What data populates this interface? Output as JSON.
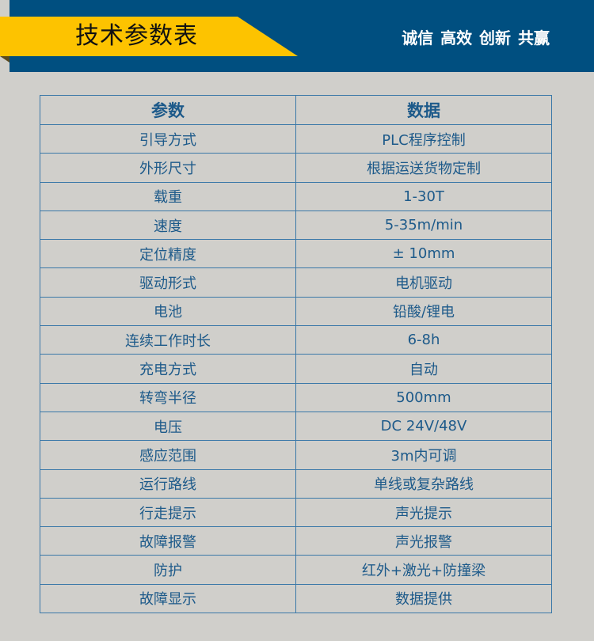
{
  "header": {
    "title": "技术参数表",
    "slogan": "诚信 高效 创新 共赢"
  },
  "colors": {
    "band": "#004f80",
    "banner": "#fdc300",
    "text": "#1d5a8a",
    "border": "#3a78a8",
    "background": "#d0cfcb"
  },
  "table": {
    "headers": [
      "参数",
      "数据"
    ],
    "rows": [
      [
        "引导方式",
        "PLC程序控制"
      ],
      [
        "外形尺寸",
        "根据运送货物定制"
      ],
      [
        "载重",
        "1-30T"
      ],
      [
        "速度",
        "5-35m/min"
      ],
      [
        "定位精度",
        "± 10mm"
      ],
      [
        "驱动形式",
        "电机驱动"
      ],
      [
        "电池",
        "铅酸/锂电"
      ],
      [
        "连续工作时长",
        "6-8h"
      ],
      [
        "充电方式",
        "自动"
      ],
      [
        "转弯半径",
        "500mm"
      ],
      [
        "电压",
        "DC 24V/48V"
      ],
      [
        "感应范围",
        "3m内可调"
      ],
      [
        "运行路线",
        "单线或复杂路线"
      ],
      [
        "行走提示",
        "声光提示"
      ],
      [
        "故障报警",
        "声光报警"
      ],
      [
        "防护",
        "红外+激光+防撞梁"
      ],
      [
        "故障显示",
        "数据提供"
      ]
    ]
  }
}
